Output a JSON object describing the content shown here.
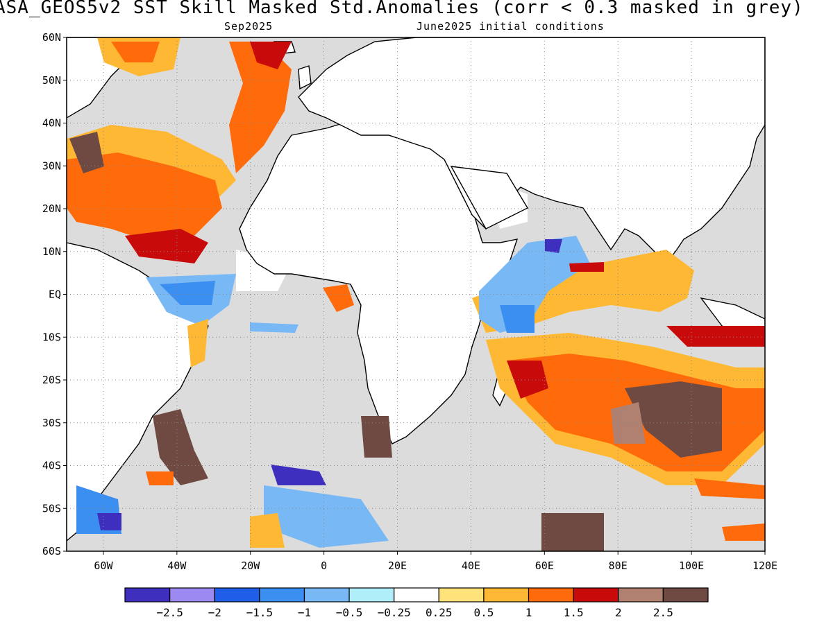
{
  "title": "ASA_GEOS5v2  SST Skill Masked Std.Anomalies (corr < 0.3 masked in grey)",
  "subtitle_left": "Sep2025",
  "subtitle_right": "June2025 initial conditions",
  "lat_labels": [
    "60N",
    "50N",
    "40N",
    "30N",
    "20N",
    "10N",
    "EQ",
    "10S",
    "20S",
    "30S",
    "40S",
    "50S",
    "60S"
  ],
  "lon_labels": [
    "60W",
    "40W",
    "20W",
    "0",
    "20E",
    "40E",
    "60E",
    "80E",
    "100E",
    "120E"
  ],
  "colorbar": {
    "colors": [
      "#3f2fbf",
      "#9c8af2",
      "#1e5ee8",
      "#3b8ff0",
      "#78b8f5",
      "#b0eefa",
      "#ffffff",
      "#ffe27a",
      "#ffb833",
      "#ff6a0a",
      "#c80a0a",
      "#b08070",
      "#6f4a42"
    ],
    "labels": [
      "−2.5",
      "−2",
      "−1.5",
      "−1",
      "−0.5",
      "−0.25",
      "0.25",
      "0.5",
      "1",
      "1.5",
      "2",
      "2.5"
    ]
  },
  "colors": {
    "mask_grey": "#dcdcdc",
    "land": "#ffffff",
    "coast": "#000000"
  }
}
